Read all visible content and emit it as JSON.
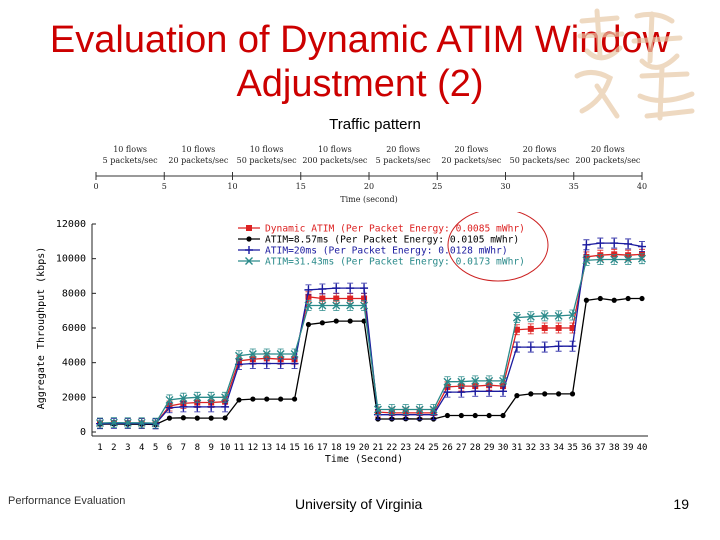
{
  "slide": {
    "title_line1": "Evaluation of Dynamic ATIM Window",
    "title_line2": "Adjustment (2)",
    "subtitle": "Traffic pattern",
    "footer_left": "Performance Evaluation",
    "footer_center": "University of Virginia",
    "page_number": "19",
    "colors": {
      "title": "#cc0000",
      "highlight_circle": "#cc2222"
    }
  },
  "chart_data": [
    {
      "type": "timeline",
      "title": "",
      "xlabel": "Time (second)",
      "xlim": [
        0,
        40
      ],
      "ticks": [
        0,
        5,
        10,
        15,
        20,
        25,
        30,
        35,
        40
      ],
      "segments": [
        {
          "start": 0,
          "end": 5,
          "line1": "10 flows",
          "line2": "5 packets/sec"
        },
        {
          "start": 5,
          "end": 10,
          "line1": "10 flows",
          "line2": "20 packets/sec"
        },
        {
          "start": 10,
          "end": 15,
          "line1": "10 flows",
          "line2": "50 packets/sec"
        },
        {
          "start": 15,
          "end": 20,
          "line1": "10 flows",
          "line2": "200 packets/sec"
        },
        {
          "start": 20,
          "end": 25,
          "line1": "20 flows",
          "line2": "5 packets/sec"
        },
        {
          "start": 25,
          "end": 30,
          "line1": "20 flows",
          "line2": "20 packets/sec"
        },
        {
          "start": 30,
          "end": 35,
          "line1": "20 flows",
          "line2": "50 packets/sec"
        },
        {
          "start": 35,
          "end": 40,
          "line1": "20 flows",
          "line2": "200 packets/sec"
        }
      ]
    },
    {
      "type": "line",
      "title": "",
      "xlabel": "Time (Second)",
      "ylabel": "Aggregate Throughput (kbps)",
      "x": [
        1,
        2,
        3,
        4,
        5,
        6,
        7,
        8,
        9,
        10,
        11,
        12,
        13,
        14,
        15,
        16,
        17,
        18,
        19,
        20,
        21,
        22,
        23,
        24,
        25,
        26,
        27,
        28,
        29,
        30,
        31,
        32,
        33,
        34,
        35,
        36,
        37,
        38,
        39,
        40
      ],
      "xlim": [
        1,
        40
      ],
      "ylim": [
        0,
        12000
      ],
      "yticks": [
        0,
        2000,
        4000,
        6000,
        8000,
        10000,
        12000
      ],
      "legend_position": "top-center",
      "series": [
        {
          "name": "Dynamic ATIM (Per Packet Energy: 0.0085 mWhr)",
          "color": "#dd2222",
          "marker": "square",
          "values": [
            500,
            520,
            510,
            500,
            480,
            1500,
            1650,
            1700,
            1700,
            1750,
            4100,
            4200,
            4250,
            4200,
            4200,
            7800,
            7700,
            7700,
            7700,
            7700,
            1150,
            1100,
            1100,
            1100,
            1100,
            2600,
            2650,
            2650,
            2700,
            2650,
            5900,
            5950,
            6000,
            6000,
            6000,
            10100,
            10200,
            10250,
            10200,
            10250
          ]
        },
        {
          "name": "ATIM=8.57ms (Per Packet Energy: 0.0105 mWhr)",
          "color": "#000000",
          "marker": "circle",
          "values": [
            450,
            460,
            450,
            450,
            430,
            800,
            820,
            800,
            800,
            810,
            1850,
            1900,
            1900,
            1900,
            1900,
            6200,
            6300,
            6400,
            6400,
            6400,
            750,
            750,
            760,
            750,
            750,
            950,
            950,
            950,
            950,
            950,
            2100,
            2200,
            2200,
            2200,
            2200,
            7600,
            7700,
            7600,
            7700,
            7700
          ]
        },
        {
          "name": "ATIM=20ms (Per Packet Energy: 0.0128 mWhr)",
          "color": "#1b1b9f",
          "marker": "plus",
          "values": [
            480,
            500,
            490,
            490,
            470,
            1400,
            1450,
            1450,
            1450,
            1450,
            3900,
            3950,
            3950,
            3950,
            3950,
            8200,
            8250,
            8300,
            8300,
            8300,
            1000,
            1000,
            1000,
            1000,
            1000,
            2300,
            2300,
            2350,
            2350,
            2350,
            4900,
            4900,
            4900,
            4950,
            4950,
            10800,
            10900,
            10900,
            10850,
            10700
          ]
        },
        {
          "name": "ATIM=31.43ms (Per Packet Energy: 0.0173 mWhr)",
          "color": "#2a8a8a",
          "marker": "cross",
          "values": [
            520,
            540,
            530,
            530,
            510,
            1850,
            1950,
            2000,
            2000,
            2000,
            4400,
            4500,
            4500,
            4500,
            4500,
            7300,
            7300,
            7300,
            7300,
            7300,
            1300,
            1300,
            1300,
            1300,
            1300,
            2900,
            2900,
            2950,
            2950,
            2950,
            6600,
            6650,
            6700,
            6700,
            6750,
            9900,
            9950,
            9950,
            9950,
            10000
          ]
        }
      ]
    }
  ]
}
